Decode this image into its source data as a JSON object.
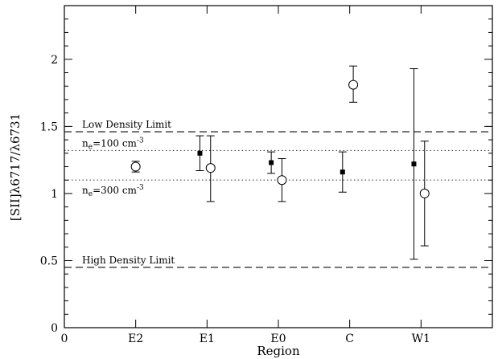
{
  "chart_data": {
    "type": "scatter",
    "xlabel": "Region",
    "ylabel": "[SII]λ6717/λ6731",
    "xlim": [
      0,
      6
    ],
    "ylim": [
      0,
      2.4
    ],
    "x_ticks": [
      {
        "value": 0,
        "label": "0"
      },
      {
        "value": 1,
        "label": "E2"
      },
      {
        "value": 2,
        "label": "E1"
      },
      {
        "value": 3,
        "label": "E0"
      },
      {
        "value": 4,
        "label": "C"
      },
      {
        "value": 5,
        "label": "W1"
      }
    ],
    "y_ticks": [
      {
        "value": 0,
        "label": "0"
      },
      {
        "value": 0.5,
        "label": "0.5"
      },
      {
        "value": 1,
        "label": "1"
      },
      {
        "value": 1.5,
        "label": "1.5"
      },
      {
        "value": 2,
        "label": "2"
      }
    ],
    "series": [
      {
        "marker": "filled-square",
        "points": [
          {
            "x": 1.9,
            "y": 1.3,
            "ylow": 1.17,
            "yhigh": 1.43
          },
          {
            "x": 2.9,
            "y": 1.23,
            "ylow": 1.15,
            "yhigh": 1.31
          },
          {
            "x": 3.9,
            "y": 1.16,
            "ylow": 1.01,
            "yhigh": 1.31
          },
          {
            "x": 4.9,
            "y": 1.22,
            "ylow": 0.51,
            "yhigh": 1.93
          }
        ]
      },
      {
        "marker": "open-circle",
        "points": [
          {
            "x": 1.0,
            "y": 1.2,
            "ylow": 1.16,
            "yhigh": 1.24
          },
          {
            "x": 2.05,
            "y": 1.19,
            "ylow": 0.94,
            "yhigh": 1.43
          },
          {
            "x": 3.05,
            "y": 1.1,
            "ylow": 0.94,
            "yhigh": 1.26
          },
          {
            "x": 4.05,
            "y": 1.81,
            "ylow": 1.68,
            "yhigh": 1.95
          },
          {
            "x": 5.05,
            "y": 1.0,
            "ylow": 0.61,
            "yhigh": 1.39
          }
        ]
      }
    ],
    "reference_lines": [
      {
        "y": 1.46,
        "style": "dashed",
        "label": "Low Density Limit"
      },
      {
        "y": 1.32,
        "style": "dotted",
        "label_main": "n",
        "label_sub": "e",
        "label_rest": "=100 cm",
        "label_sup": "-3"
      },
      {
        "y": 1.1,
        "style": "dotted",
        "label_main": "n",
        "label_sub": "e",
        "label_rest": "=300 cm",
        "label_sup": "-3"
      },
      {
        "y": 0.45,
        "style": "dashed",
        "label": "High Density Limit"
      }
    ]
  }
}
